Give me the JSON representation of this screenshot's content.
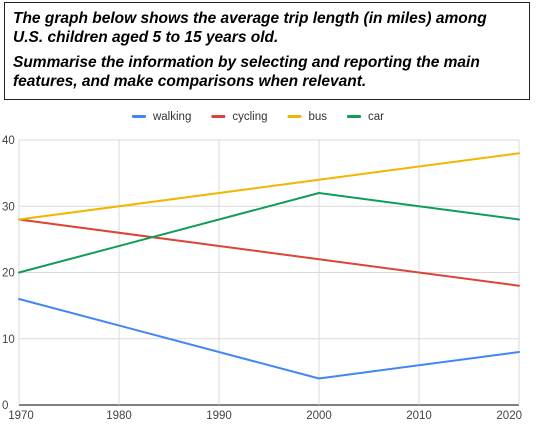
{
  "prompt": {
    "line1": "The graph below shows the average trip length (in miles) among U.S. children aged 5 to 15 years old.",
    "line2": "Summarise the information by selecting and reporting the main features, and make comparisons when relevant."
  },
  "chart_data": {
    "type": "line",
    "title": "",
    "xlabel": "",
    "ylabel": "",
    "x": [
      1970,
      2000,
      2020
    ],
    "xticks": [
      1970,
      1980,
      1990,
      2000,
      2010,
      2020
    ],
    "yticks": [
      0,
      10,
      20,
      30,
      40
    ],
    "xlim": [
      1970,
      2020
    ],
    "ylim": [
      0,
      40
    ],
    "grid": true,
    "legend_position": "top",
    "series": [
      {
        "name": "walking",
        "color": "#4285F4",
        "values": [
          16,
          4,
          8
        ]
      },
      {
        "name": "cycling",
        "color": "#DB4437",
        "values": [
          28,
          22,
          18
        ]
      },
      {
        "name": "bus",
        "color": "#F4B400",
        "values": [
          28,
          34,
          38
        ]
      },
      {
        "name": "car",
        "color": "#0F9D58",
        "values": [
          20,
          32,
          28
        ]
      }
    ]
  }
}
